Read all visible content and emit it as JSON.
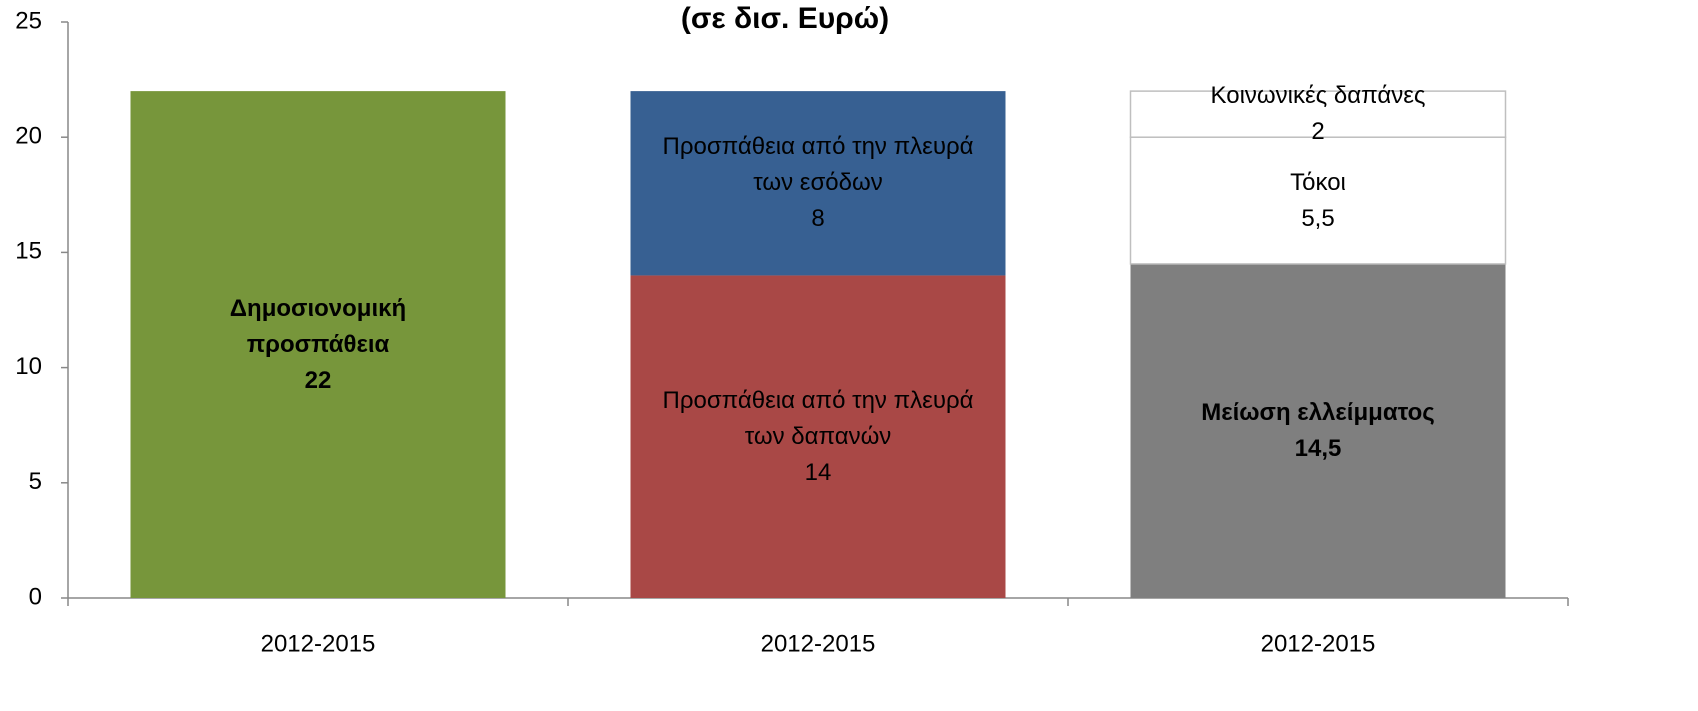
{
  "chart_data": {
    "type": "stacked_bar",
    "title": "(σε δισ. Ευρώ)",
    "categories": [
      "2012-2015",
      "2012-2015",
      "2012-2015"
    ],
    "series": [
      {
        "name": "Δημοσιονομική προσπάθεια",
        "color": "#77963b",
        "bold": true,
        "values": [
          22,
          null,
          null
        ]
      },
      {
        "name": "Προσπάθεια από την πλευρά των δαπανών",
        "color": "#a94846",
        "values": [
          null,
          14,
          null
        ]
      },
      {
        "name": "Προσπάθεια από την πλευρά των εσόδων",
        "color": "#376092",
        "values": [
          null,
          8,
          null
        ]
      },
      {
        "name": "Μείωση ελλείμματος",
        "color": "#7f7f7f",
        "bold": true,
        "values": [
          null,
          null,
          14.5
        ],
        "value_labels": [
          null,
          null,
          "14,5"
        ]
      },
      {
        "name": "Τόκοι",
        "color": "#ffffff",
        "values": [
          null,
          null,
          5.5
        ],
        "value_labels": [
          null,
          null,
          "5,5"
        ]
      },
      {
        "name": "Κοινωνικές δαπάνες",
        "color": "#ffffff",
        "values": [
          null,
          null,
          2
        ]
      }
    ],
    "ylim": [
      0,
      25
    ],
    "yticks": [
      0,
      5,
      10,
      15,
      20,
      25
    ],
    "grid": false
  }
}
